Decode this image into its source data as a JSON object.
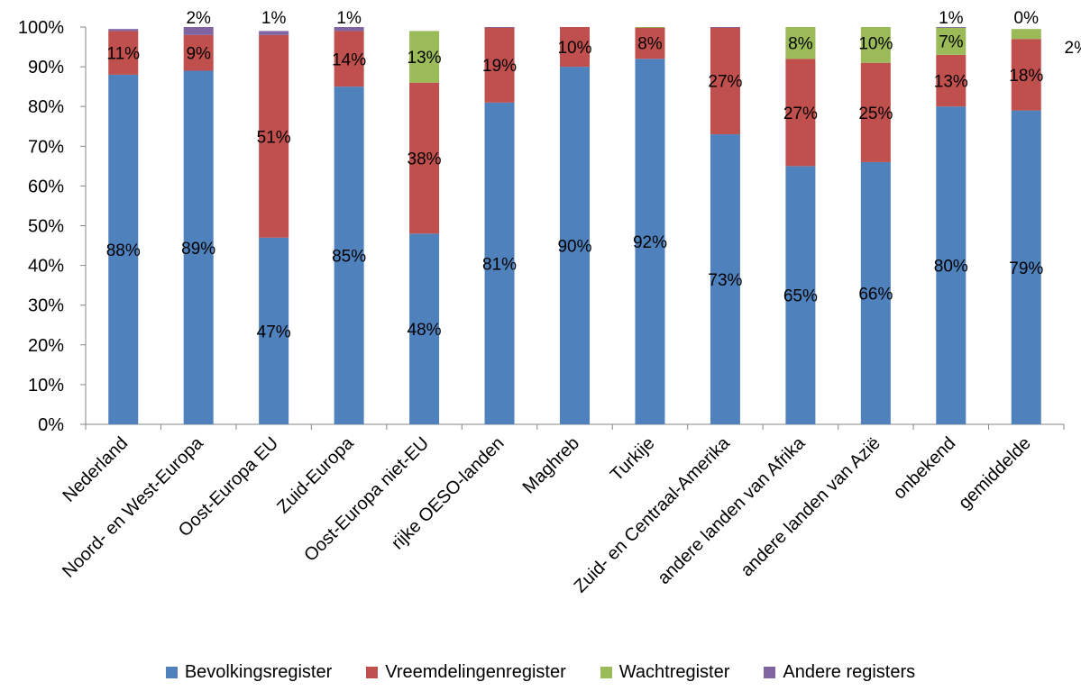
{
  "chart_data": {
    "type": "bar",
    "stacked": true,
    "percent_stacked": true,
    "categories": [
      "Nederland",
      "Noord- en West-Europa",
      "Oost-Europa EU",
      "Zuid-Europa",
      "Oost-Europa niet-EU",
      "rijke OESO-landen",
      "Maghreb",
      "Turkije",
      "Zuid- en Centraal-Amerika",
      "andere landen van Afrika",
      "andere landen van Azië",
      "onbekend",
      "gemiddelde"
    ],
    "series": [
      {
        "name": "Bevolkingsregister",
        "color": "#4f81bd",
        "values": [
          88,
          89,
          47,
          85,
          48,
          81,
          90,
          92,
          73,
          65,
          66,
          80,
          79
        ],
        "labels": [
          "88%",
          "89%",
          "47%",
          "85%",
          "48%",
          "81%",
          "90%",
          "92%",
          "73%",
          "65%",
          "66%",
          "80%",
          "79%"
        ]
      },
      {
        "name": "Vreemdelingenregister",
        "color": "#c0504d",
        "values": [
          11,
          9,
          51,
          14,
          38,
          19,
          10,
          8,
          27,
          27,
          25,
          13,
          18
        ],
        "labels": [
          "11%",
          "9%",
          "51%",
          "14%",
          "38%",
          "19%",
          "10%",
          "8%",
          "27%",
          "27%",
          "25%",
          "13%",
          "18%"
        ]
      },
      {
        "name": "Wachtregister",
        "color": "#9bbb59",
        "values": [
          0,
          0,
          0,
          0,
          13,
          0,
          0,
          0.6,
          0,
          8,
          10,
          7,
          2.5
        ],
        "labels": [
          "",
          "",
          "",
          "",
          "13%",
          "",
          "",
          "",
          "",
          "8%",
          "10%",
          "7%",
          "2%"
        ]
      },
      {
        "name": "Andere registers",
        "color": "#8064a2",
        "values": [
          0.5,
          2,
          1,
          1,
          0,
          0.3,
          0,
          0,
          0.5,
          0,
          0,
          1,
          0
        ],
        "labels": [
          "",
          "2%",
          "1%",
          "1%",
          "",
          "",
          "",
          "",
          "",
          "",
          "",
          "1%",
          "0%"
        ]
      }
    ],
    "y_ticks": [
      "0%",
      "10%",
      "20%",
      "30%",
      "40%",
      "50%",
      "60%",
      "70%",
      "80%",
      "90%",
      "100%"
    ],
    "ylim": [
      0,
      100
    ],
    "title": "",
    "xlabel": "",
    "ylabel": "",
    "grid": false,
    "legend_position": "bottom"
  }
}
